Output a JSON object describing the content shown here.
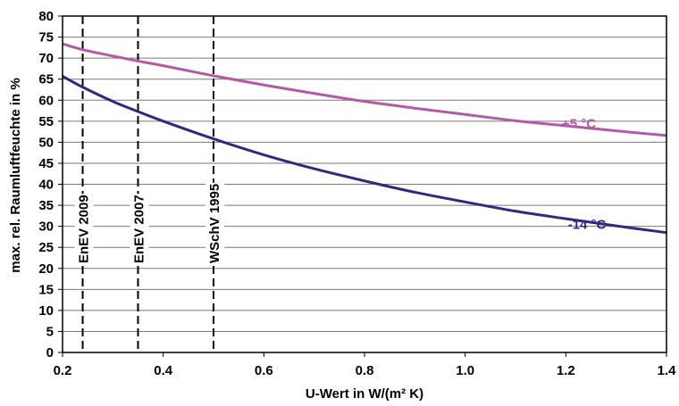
{
  "chart_data": {
    "type": "line",
    "title": "",
    "xlabel": "U-Wert in W/(m² K)",
    "ylabel": "max. rel. Raumluftfeuchte in %",
    "xlim": [
      0.2,
      1.4
    ],
    "ylim": [
      0,
      80
    ],
    "x_ticks": [
      "0.2",
      "0.4",
      "0.6",
      "0.8",
      "1.0",
      "1.2",
      "1.4"
    ],
    "y_ticks": [
      "0",
      "5",
      "10",
      "15",
      "20",
      "25",
      "30",
      "35",
      "40",
      "45",
      "50",
      "55",
      "60",
      "65",
      "70",
      "75",
      "80"
    ],
    "grid": true,
    "series": [
      {
        "name": "+5 °C",
        "color": "#b459a8",
        "x": [
          0.2,
          0.24,
          0.3,
          0.35,
          0.4,
          0.5,
          0.6,
          0.7,
          0.8,
          0.9,
          1.0,
          1.1,
          1.2,
          1.3,
          1.4
        ],
        "y": [
          73.4,
          72.0,
          70.5,
          69.3,
          68.2,
          65.8,
          63.6,
          61.6,
          59.7,
          58.1,
          56.6,
          55.1,
          53.9,
          52.7,
          51.6
        ]
      },
      {
        "name": "-14 °C",
        "color": "#2e2a80",
        "x": [
          0.2,
          0.24,
          0.3,
          0.35,
          0.4,
          0.5,
          0.6,
          0.7,
          0.8,
          0.9,
          1.0,
          1.1,
          1.2,
          1.3,
          1.4
        ],
        "y": [
          65.7,
          63.1,
          59.7,
          57.3,
          55.0,
          50.8,
          47.0,
          43.7,
          40.8,
          38.1,
          35.8,
          33.6,
          31.8,
          30.1,
          28.5
        ]
      }
    ],
    "reference_lines": [
      {
        "x": 0.24,
        "label": "EnEV 2009"
      },
      {
        "x": 0.35,
        "label": "EnEV 2007"
      },
      {
        "x": 0.5,
        "label": "WSchV 1995"
      }
    ]
  }
}
